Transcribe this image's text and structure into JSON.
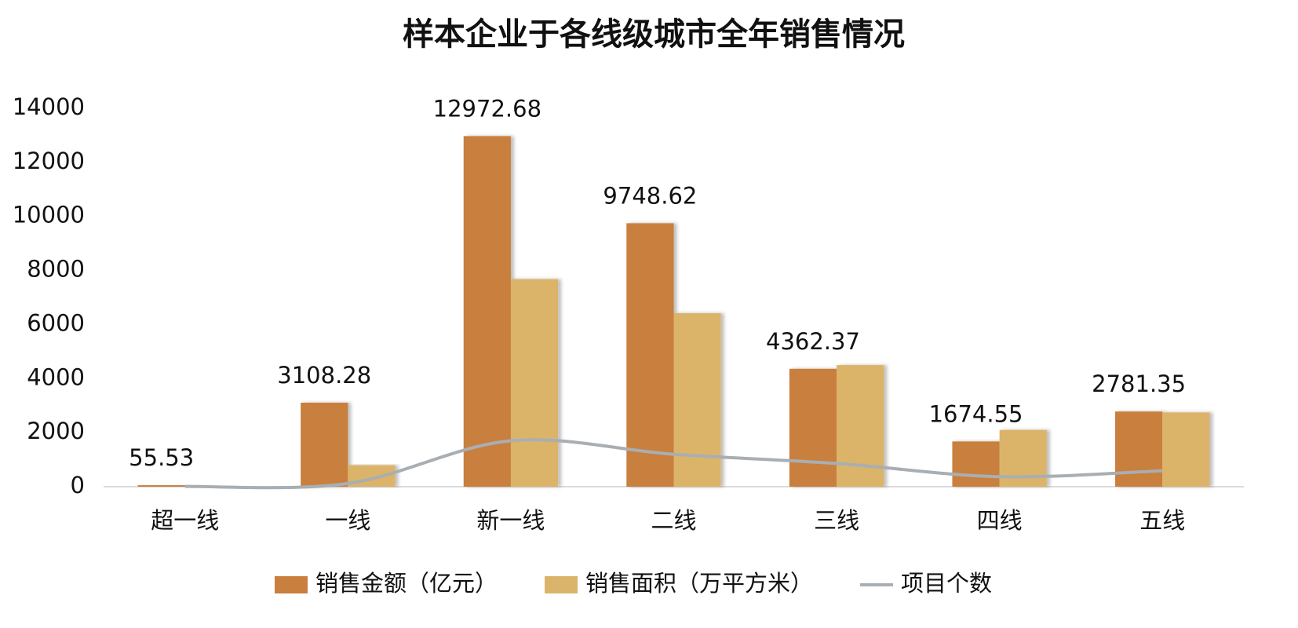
{
  "chart_data": {
    "type": "bar",
    "title": "样本企业于各线级城市全年销售情况",
    "categories": [
      "超一线",
      "一线",
      "新一线",
      "二线",
      "三线",
      "四线",
      "五线"
    ],
    "series": [
      {
        "name": "销售金额（亿元）",
        "type": "bar",
        "color": "#c97f3d",
        "values": [
          55.53,
          3108.28,
          12972.68,
          9748.62,
          4362.37,
          1674.55,
          2781.35
        ],
        "data_labels": true
      },
      {
        "name": "销售面积（万平方米）",
        "type": "bar",
        "color": "#dbb46b",
        "values": [
          20,
          800,
          7680,
          6420,
          4500,
          2100,
          2750
        ]
      },
      {
        "name": "项目个数",
        "type": "line",
        "color": "#a9aeb2",
        "values": [
          10,
          120,
          1700,
          1200,
          860,
          370,
          590
        ],
        "smooth": true
      }
    ],
    "ylim": [
      0,
      14000
    ],
    "yticks": [
      0,
      2000,
      4000,
      6000,
      8000,
      10000,
      12000,
      14000
    ],
    "grid": false,
    "legend": "bottom"
  }
}
